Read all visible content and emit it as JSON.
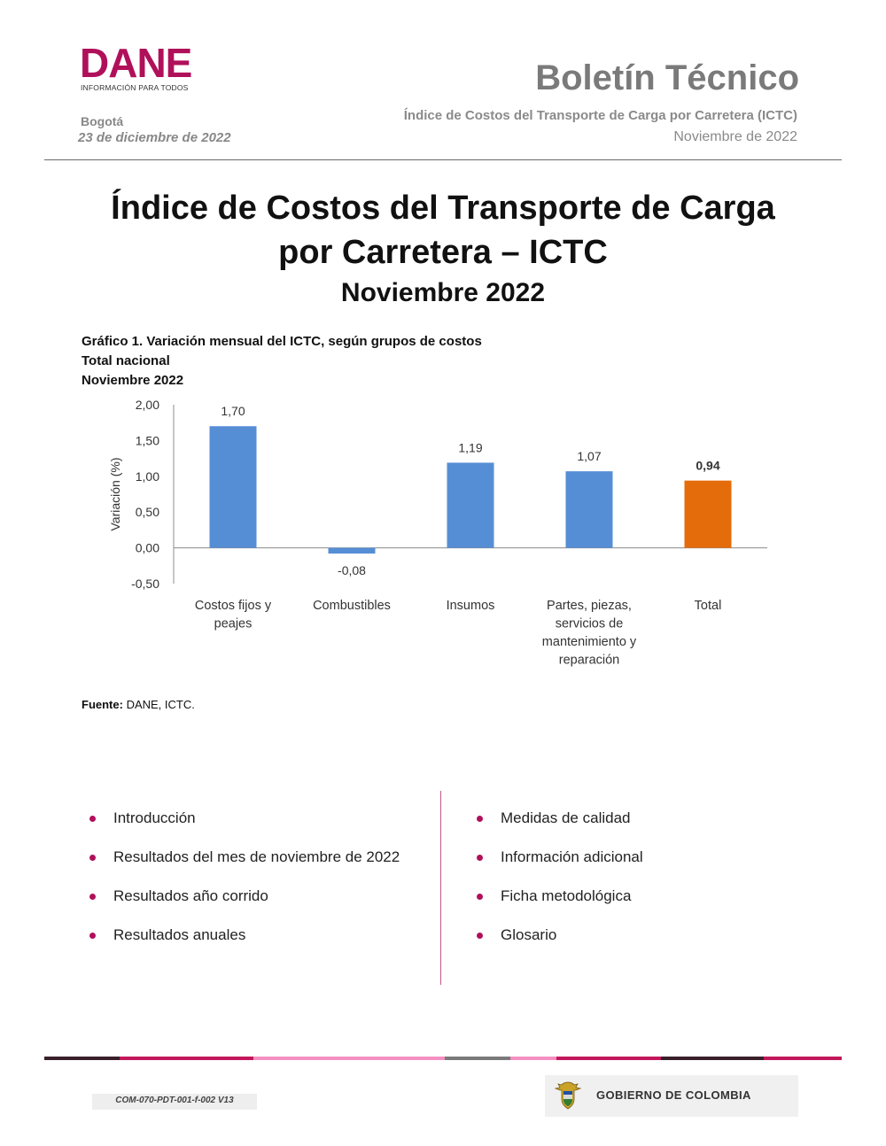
{
  "header": {
    "logo_word": "DANE",
    "logo_tagline": "INFORMACIÓN PARA TODOS",
    "city": "Bogotá",
    "date": "23 de diciembre de 2022",
    "doc_type": "Boletín Técnico",
    "subtitle": "Índice de Costos del Transporte de Carga por Carretera (ICTC)",
    "period": "Noviembre de 2022"
  },
  "title": {
    "line1": "Índice de Costos del Transporte de Carga",
    "line2": "por Carretera – ICTC",
    "date": "Noviembre 2022"
  },
  "chart_heading": {
    "line1": "Gráfico 1. Variación mensual del ICTC, según grupos de costos",
    "line2": "Total nacional",
    "line3": "Noviembre 2022"
  },
  "chart_data": {
    "type": "bar",
    "categories": [
      [
        "Costos fijos y",
        "peajes"
      ],
      [
        "Combustibles"
      ],
      [
        "Insumos"
      ],
      [
        "Partes, piezas,",
        "servicios de",
        "mantenimiento y",
        "reparación"
      ],
      [
        "Total"
      ]
    ],
    "values": [
      1.7,
      -0.08,
      1.19,
      1.07,
      0.94
    ],
    "value_labels": [
      "1,70",
      "-0,08",
      "1,19",
      "1,07",
      "0,94"
    ],
    "colors": [
      "#558ed5",
      "#558ed5",
      "#558ed5",
      "#558ed5",
      "#e46c0a"
    ],
    "bold_labels": [
      false,
      false,
      false,
      false,
      true
    ],
    "ylabel": "Variación (%)",
    "ylim": [
      -0.5,
      2.0
    ],
    "yticks": [
      2.0,
      1.5,
      1.0,
      0.5,
      0.0,
      -0.5
    ],
    "ytick_labels": [
      "2,00",
      "1,50",
      "1,00",
      "0,50",
      "0,00",
      "-0,50"
    ],
    "grid": false,
    "legend": "none"
  },
  "source": {
    "label": "Fuente:",
    "text": " DANE, ICTC."
  },
  "toc": {
    "left": [
      "Introducción",
      "Resultados del mes de noviembre de 2022",
      "Resultados año corrido",
      "Resultados anuales"
    ],
    "right": [
      "Medidas de calidad",
      "Información adicional",
      "Ficha metodológica",
      "Glosario"
    ]
  },
  "footer": {
    "code": "COM-070-PDT-001-f-002 V13",
    "government": "GOBIERNO DE COLOMBIA",
    "stripe_colors": [
      "#3a1f2a",
      "#c2185b",
      "#f48fc1",
      "#7a7a7a",
      "#f48fc1",
      "#c2185b",
      "#3a1f2a",
      "#c2185b"
    ]
  },
  "brand_color": "#b0105a"
}
